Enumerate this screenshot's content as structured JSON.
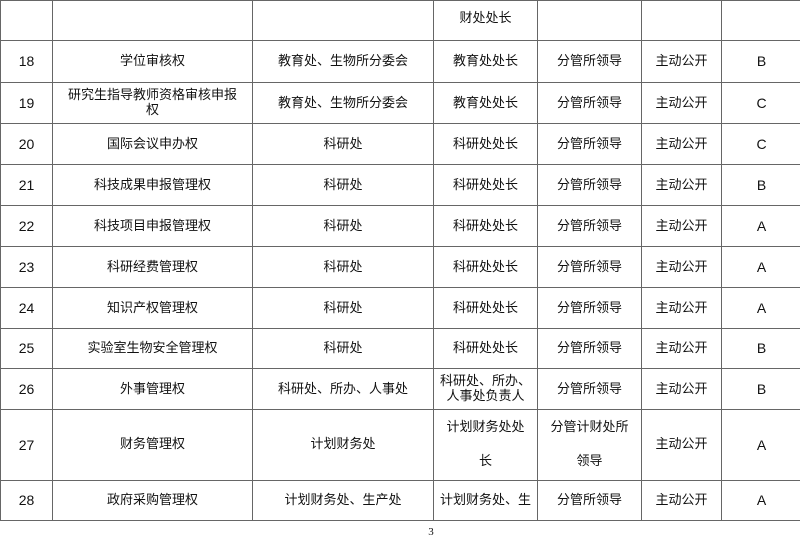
{
  "continued_row": {
    "number": "",
    "name": "",
    "department": "",
    "responsible": "财处处长",
    "approver": "",
    "disclosure": "",
    "level": ""
  },
  "rows": [
    {
      "number": "18",
      "name": "学位审核权",
      "department": "教育处、生物所分委会",
      "responsible": "教育处处长",
      "approver": "分管所领导",
      "disclosure": "主动公开",
      "level": "B"
    },
    {
      "number": "19",
      "name": "研究生指导教师资格审核申报\n权",
      "department": "教育处、生物所分委会",
      "responsible": "教育处处长",
      "approver": "分管所领导",
      "disclosure": "主动公开",
      "level": "C"
    },
    {
      "number": "20",
      "name": "国际会议申办权",
      "department": "科研处",
      "responsible": "科研处处长",
      "approver": "分管所领导",
      "disclosure": "主动公开",
      "level": "C"
    },
    {
      "number": "21",
      "name": "科技成果申报管理权",
      "department": "科研处",
      "responsible": "科研处处长",
      "approver": "分管所领导",
      "disclosure": "主动公开",
      "level": "B"
    },
    {
      "number": "22",
      "name": "科技项目申报管理权",
      "department": "科研处",
      "responsible": "科研处处长",
      "approver": "分管所领导",
      "disclosure": "主动公开",
      "level": "A"
    },
    {
      "number": "23",
      "name": "科研经费管理权",
      "department": "科研处",
      "responsible": "科研处处长",
      "approver": "分管所领导",
      "disclosure": "主动公开",
      "level": "A"
    },
    {
      "number": "24",
      "name": "知识产权管理权",
      "department": "科研处",
      "responsible": "科研处处长",
      "approver": "分管所领导",
      "disclosure": "主动公开",
      "level": "A"
    },
    {
      "number": "25",
      "name": "实验室生物安全管理权",
      "department": "科研处",
      "responsible": "科研处处长",
      "approver": "分管所领导",
      "disclosure": "主动公开",
      "level": "B"
    },
    {
      "number": "26",
      "name": "外事管理权",
      "department": "科研处、所办、人事处",
      "responsible": "科研处、所办、\n人事处负责人",
      "approver": "分管所领导",
      "disclosure": "主动公开",
      "level": "B"
    },
    {
      "number": "27",
      "name": "财务管理权",
      "department": "计划财务处",
      "responsible": "计划财务处处\n长",
      "approver": "分管计财处所\n领导",
      "disclosure": "主动公开",
      "level": "A"
    },
    {
      "number": "28",
      "name": "政府采购管理权",
      "department": "计划财务处、生产处",
      "responsible": "计划财务处、生",
      "approver": "分管所领导",
      "disclosure": "主动公开",
      "level": "A"
    }
  ],
  "page_number": "3"
}
